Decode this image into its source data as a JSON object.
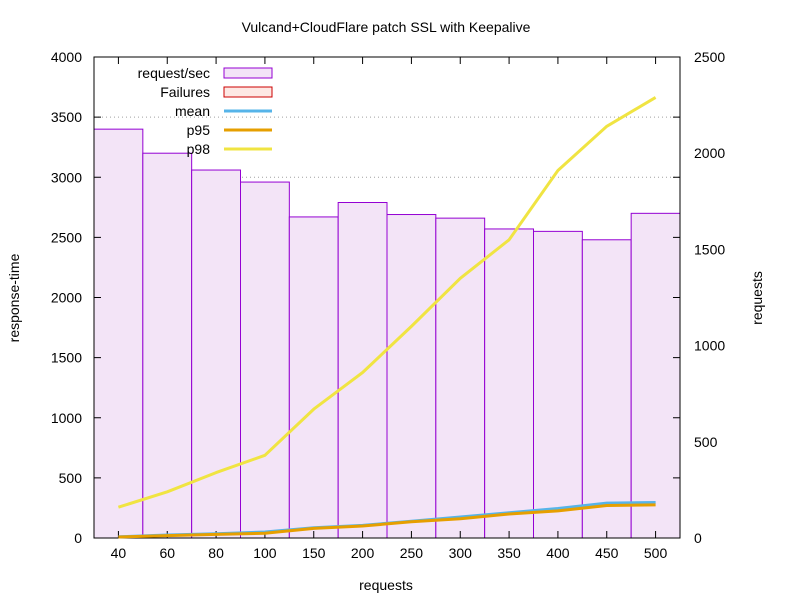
{
  "chart_data": {
    "type": "bar",
    "title": "Vulcand+CloudFlare patch SSL with Keepalive",
    "xlabel": "requests",
    "ylabel": "response-time",
    "y2label": "requests",
    "categories": [
      "40",
      "60",
      "80",
      "100",
      "150",
      "200",
      "250",
      "300",
      "350",
      "400",
      "450",
      "500"
    ],
    "ylim": [
      0,
      4000
    ],
    "y2lim": [
      0,
      2500
    ],
    "yticks": [
      "0",
      "500",
      "1000",
      "1500",
      "2000",
      "2500",
      "3000",
      "3500",
      "4000"
    ],
    "y2ticks": [
      "0",
      "500",
      "1000",
      "1500",
      "2000",
      "2500"
    ],
    "legend_position": "top-left",
    "series": [
      {
        "name": "request/sec",
        "kind": "bar",
        "axis": "y",
        "color": "#9400d3",
        "fill": "#f3e4f7",
        "values": [
          3400,
          3200,
          3060,
          2960,
          2670,
          2790,
          2690,
          2660,
          2570,
          2550,
          2480,
          2700
        ]
      },
      {
        "name": "Failures",
        "kind": "bar",
        "axis": "y",
        "color": "#cc0000",
        "fill": "#fde8e4",
        "values": [
          0,
          0,
          0,
          0,
          0,
          0,
          0,
          0,
          0,
          0,
          0,
          0
        ]
      },
      {
        "name": "mean",
        "kind": "line",
        "axis": "y",
        "color": "#56b4e9",
        "values": [
          10,
          25,
          35,
          50,
          85,
          105,
          140,
          175,
          210,
          245,
          290,
          295
        ]
      },
      {
        "name": "p95",
        "kind": "line",
        "axis": "y",
        "color": "#e69f00",
        "values": [
          8,
          20,
          30,
          40,
          80,
          100,
          135,
          160,
          200,
          225,
          270,
          275
        ]
      },
      {
        "name": "p98",
        "kind": "line",
        "axis": "y2",
        "color": "#f0e442",
        "values": [
          160,
          240,
          340,
          430,
          670,
          860,
          1100,
          1350,
          1550,
          1910,
          2140,
          2290
        ]
      }
    ],
    "grid": {
      "horizontal_dotted_at": [
        3000,
        3500
      ]
    }
  }
}
